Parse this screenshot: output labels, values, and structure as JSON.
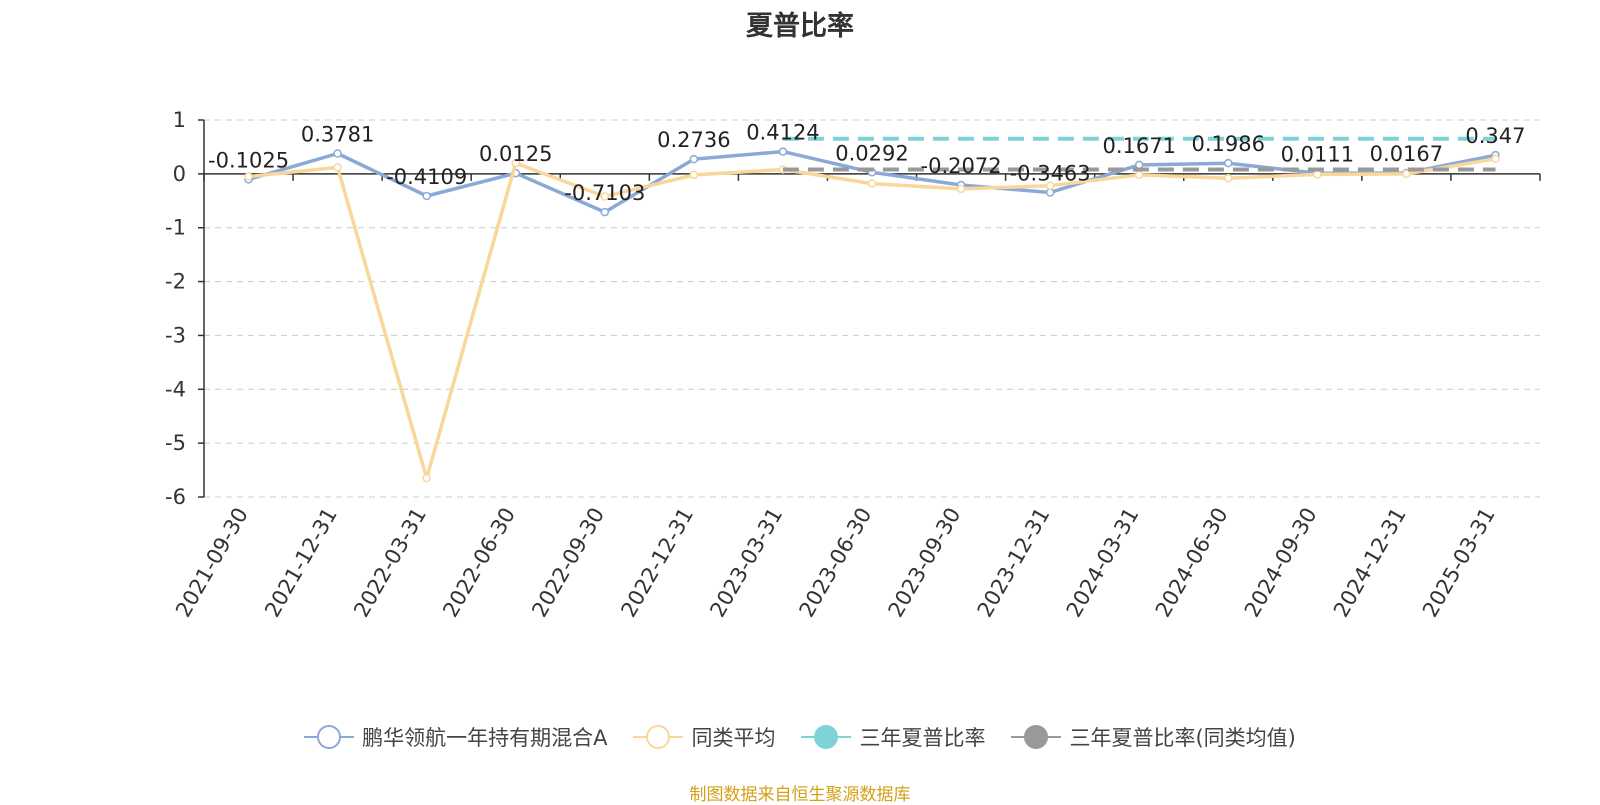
{
  "chart_data": {
    "type": "line",
    "title": "夏普比率",
    "categories": [
      "2021-09-30",
      "2021-12-31",
      "2022-03-31",
      "2022-06-30",
      "2022-09-30",
      "2022-12-31",
      "2023-03-31",
      "2023-06-30",
      "2023-09-30",
      "2023-12-31",
      "2024-03-31",
      "2024-06-30",
      "2024-09-30",
      "2024-12-31",
      "2025-03-31"
    ],
    "ylim": [
      -6,
      1
    ],
    "yticks": [
      "1",
      "0",
      "-1",
      "-2",
      "-3",
      "-4",
      "-5",
      "-6"
    ],
    "grid": true,
    "legend_position": "bottom",
    "series": [
      {
        "name": "鹏华领航一年持有期混合A",
        "color": "#8ba9d8",
        "style": "line",
        "values": [
          -0.1025,
          0.3781,
          -0.4109,
          0.0125,
          -0.7103,
          0.2736,
          0.4124,
          0.0292,
          -0.2072,
          -0.3463,
          0.1671,
          0.1986,
          0.0111,
          0.0167,
          0.347
        ],
        "labels": [
          "-0.1025",
          "0.3781",
          "-0.4109",
          "0.0125",
          "-0.7103",
          "0.2736",
          "0.4124",
          "0.0292",
          "-0.2072",
          "-0.3463",
          "0.1671",
          "0.1986",
          "0.0111",
          "0.0167",
          "0.347"
        ]
      },
      {
        "name": "同类平均",
        "color": "#f9d79a",
        "style": "line",
        "values": [
          -0.05,
          0.12,
          -5.65,
          0.2,
          -0.42,
          -0.02,
          0.08,
          -0.18,
          -0.28,
          -0.22,
          -0.02,
          -0.08,
          -0.01,
          0.0,
          0.28
        ]
      },
      {
        "name": "三年夏普比率",
        "color": "#7fd3d6",
        "style": "dashed",
        "values": [
          null,
          null,
          null,
          null,
          null,
          null,
          0.65,
          0.65,
          0.65,
          0.65,
          0.65,
          0.65,
          0.65,
          0.65,
          0.65
        ]
      },
      {
        "name": "三年夏普比率(同类均值)",
        "color": "#999999",
        "style": "dashed",
        "values": [
          null,
          null,
          null,
          null,
          null,
          null,
          0.08,
          0.08,
          0.08,
          0.08,
          0.08,
          0.08,
          0.08,
          0.08,
          0.08
        ]
      }
    ],
    "source": "制图数据来自恒生聚源数据库"
  }
}
